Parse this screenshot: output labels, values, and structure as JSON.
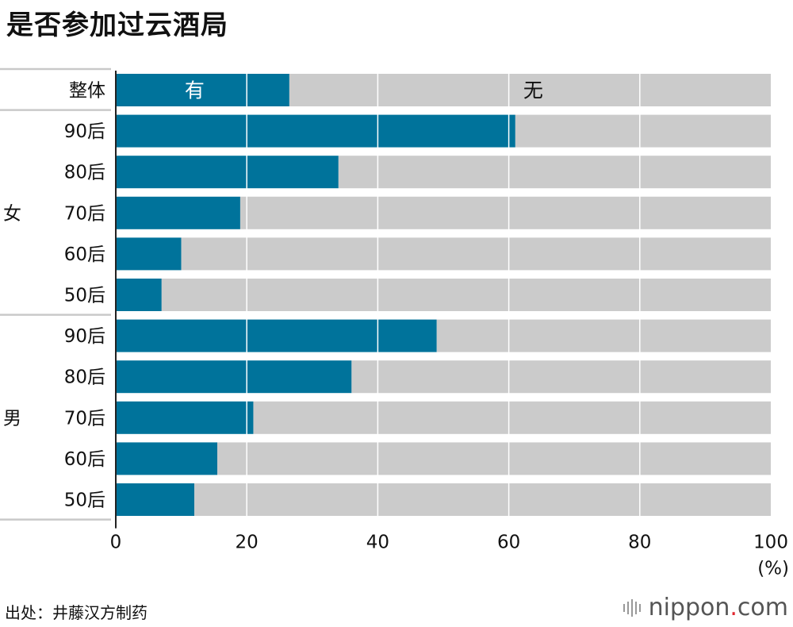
{
  "title": "是否参加过云酒局",
  "source": "出处：井藤汉方制药",
  "logo": {
    "name": "nippon",
    "dot": ".",
    "tld": "com"
  },
  "colors": {
    "yes": "#00739b",
    "no": "#cbcbcb",
    "grid": "#ffffff",
    "divider": "#c9c9c9"
  },
  "chart_data": {
    "type": "bar",
    "orientation": "horizontal",
    "stacked": true,
    "title": "是否参加过云酒局",
    "unit_label": "(%)",
    "xlim": [
      0,
      100
    ],
    "x_ticks": [
      0,
      20,
      40,
      60,
      80,
      100
    ],
    "groups": [
      {
        "label": "",
        "categories": [
          "整体"
        ]
      },
      {
        "label": "女",
        "categories": [
          "90后",
          "80后",
          "70后",
          "60后",
          "50后"
        ]
      },
      {
        "label": "男",
        "categories": [
          "90后",
          "80后",
          "70后",
          "60后",
          "50后"
        ]
      }
    ],
    "series": [
      {
        "name": "有",
        "values": [
          26.5,
          61,
          34,
          19,
          10,
          7,
          49,
          36,
          21,
          15.5,
          12
        ]
      },
      {
        "name": "无",
        "values": [
          73.5,
          39,
          66,
          81,
          90,
          93,
          51,
          64,
          79,
          84.5,
          88
        ]
      }
    ],
    "legend": "inline-first-bar",
    "grid": true
  }
}
